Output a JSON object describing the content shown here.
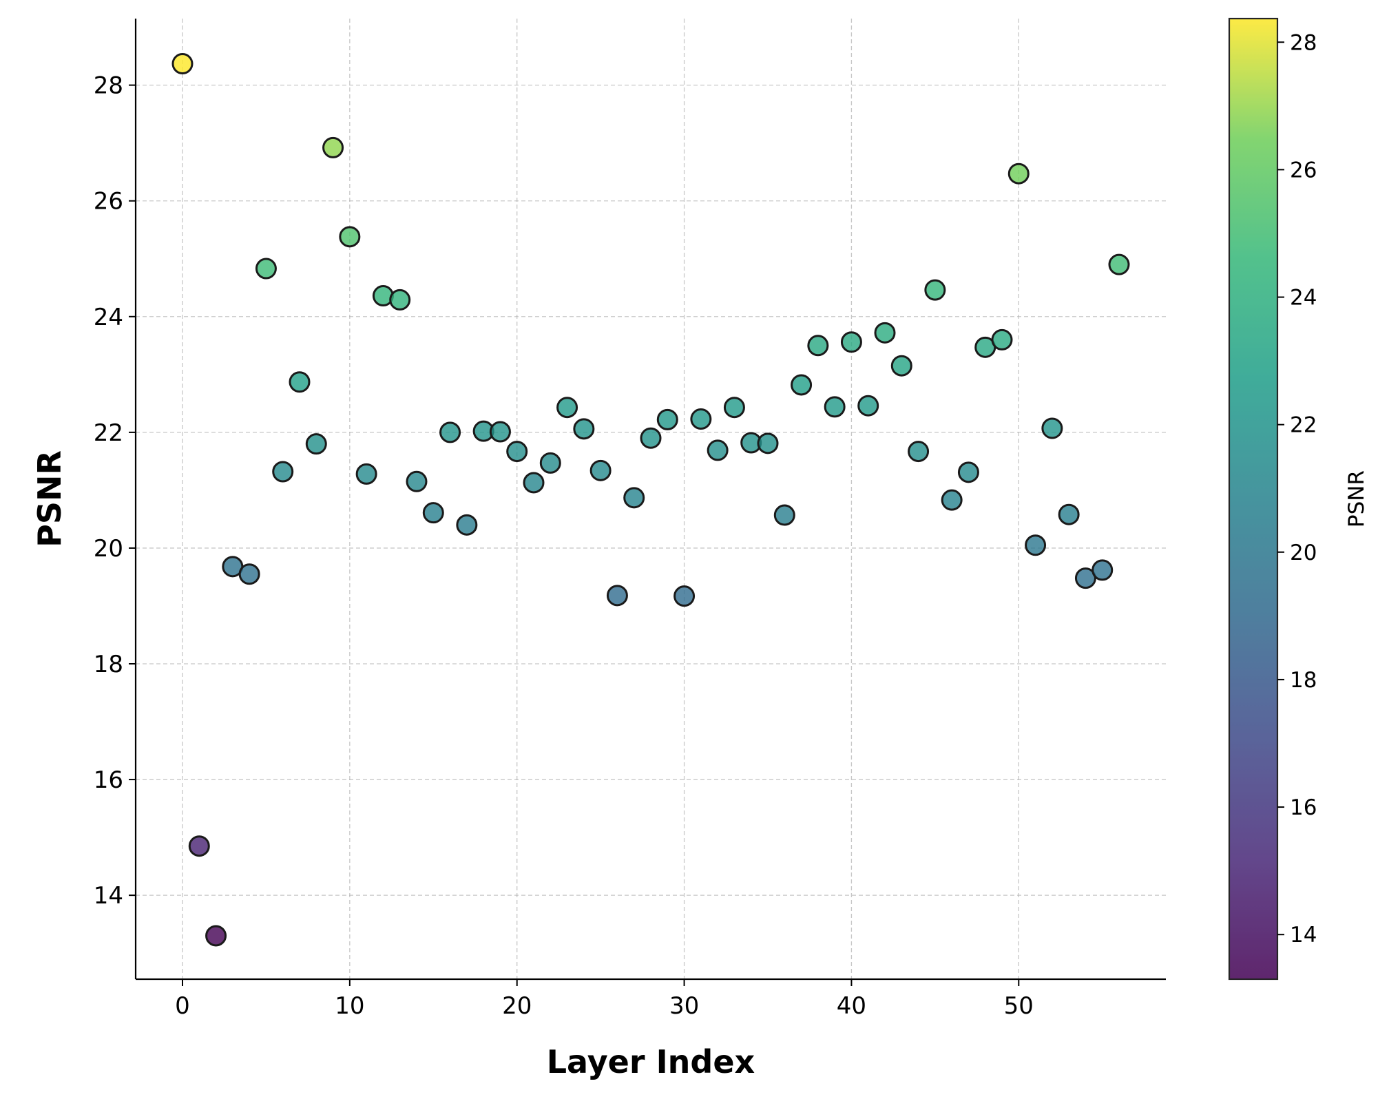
{
  "chart_data": {
    "type": "scatter",
    "xlabel": "Layer Index",
    "ylabel": "PSNR",
    "xlim": [
      -2.8,
      58.8
    ],
    "ylim": [
      12.55,
      29.15
    ],
    "xticks": [
      0,
      10,
      20,
      30,
      40,
      50
    ],
    "yticks": [
      14,
      16,
      18,
      20,
      22,
      24,
      26,
      28
    ],
    "grid": true,
    "legend": "none",
    "colormap": "viridis",
    "colorbar": {
      "label": "PSNR",
      "range": [
        13.3,
        28.37
      ],
      "ticks": [
        14,
        16,
        18,
        20,
        22,
        24,
        26,
        28
      ]
    },
    "marker_edge_color": "#1a1a1a",
    "marker_alpha": 0.8,
    "series": [
      {
        "x": [
          0,
          1,
          2,
          3,
          4,
          5,
          6,
          7,
          8,
          9,
          10,
          11,
          12,
          13,
          14,
          15,
          16,
          17,
          18,
          19,
          20,
          21,
          22,
          23,
          24,
          25,
          26,
          27,
          28,
          29,
          30,
          31,
          32,
          33,
          34,
          35,
          36,
          37,
          38,
          39,
          40,
          41,
          42,
          43,
          44,
          45,
          46,
          47,
          48,
          49,
          50,
          51,
          52,
          53,
          54,
          55,
          56
        ],
        "y": [
          28.37,
          14.85,
          13.3,
          19.68,
          19.55,
          24.83,
          21.32,
          22.87,
          21.8,
          26.92,
          25.38,
          21.28,
          24.36,
          24.29,
          21.15,
          20.61,
          22.0,
          20.4,
          22.02,
          22.01,
          21.67,
          21.13,
          21.47,
          22.43,
          22.06,
          21.34,
          19.18,
          20.87,
          21.9,
          22.22,
          19.17,
          22.23,
          21.69,
          22.43,
          21.82,
          21.81,
          20.57,
          22.82,
          23.5,
          22.44,
          23.56,
          22.46,
          23.72,
          23.15,
          21.67,
          24.46,
          20.83,
          21.31,
          23.47,
          23.6,
          26.47,
          20.05,
          22.07,
          20.58,
          19.48,
          19.62,
          24.9
        ]
      }
    ]
  }
}
